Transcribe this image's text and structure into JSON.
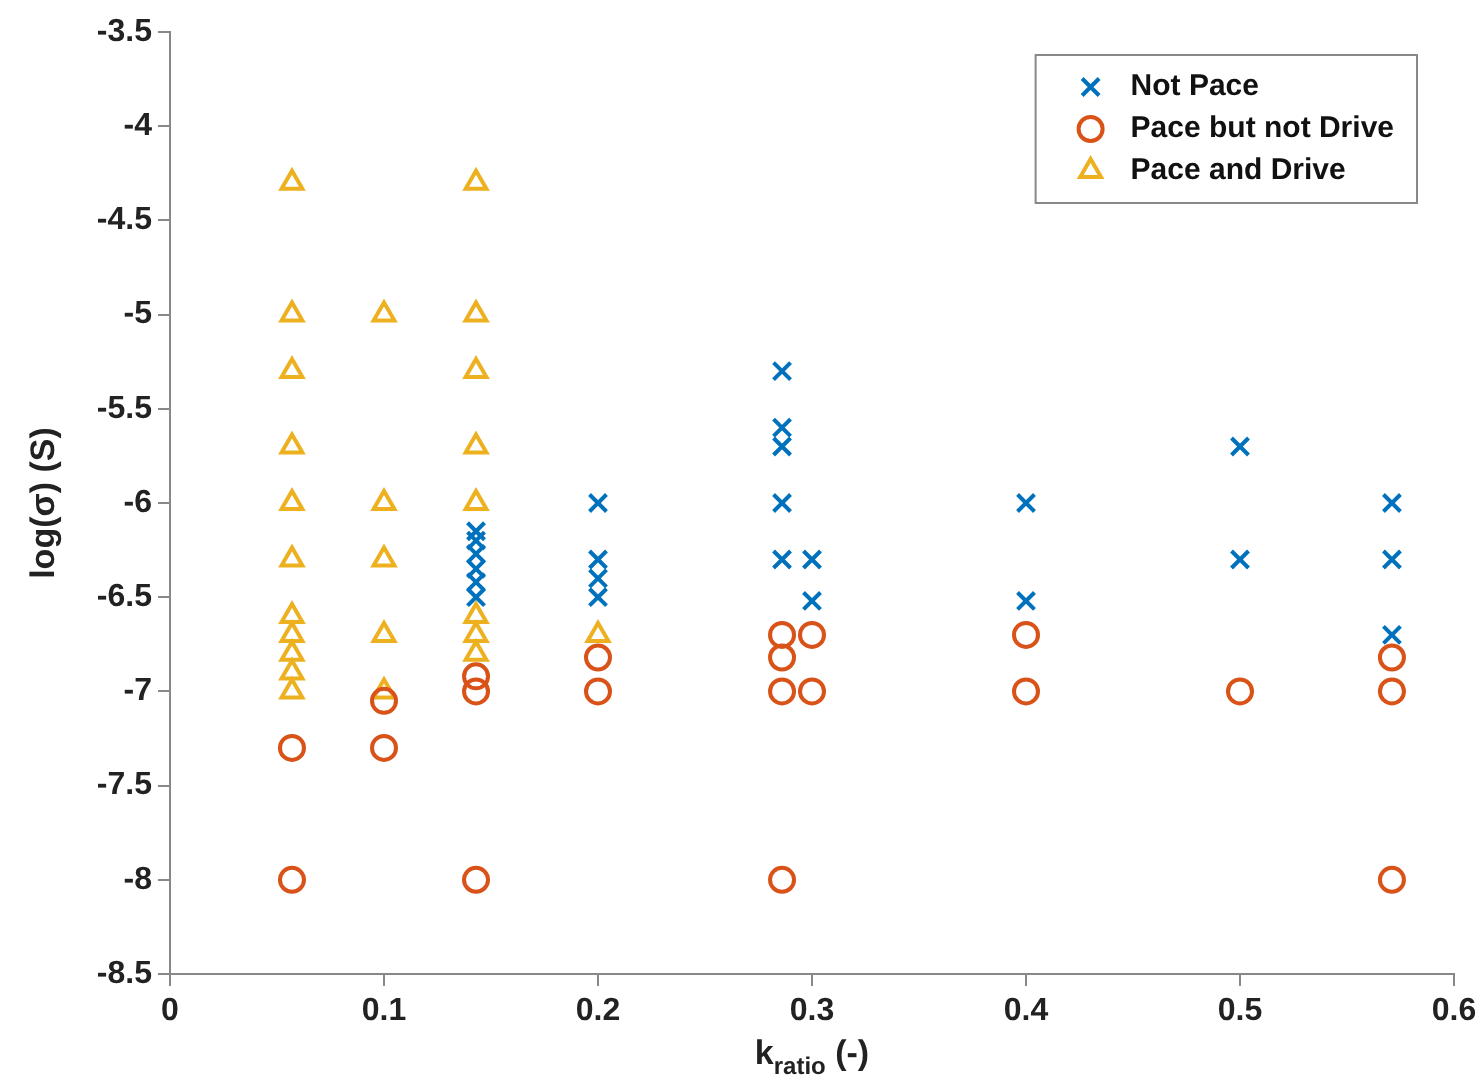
{
  "chart_data": {
    "type": "scatter",
    "xlabel": "k$_{ratio}$ (-)",
    "ylabel": "log(σ) (S)",
    "xlim": [
      0,
      0.6
    ],
    "xticks": [
      0,
      0.1,
      0.2,
      0.3,
      0.4,
      0.5,
      0.6
    ],
    "ylim": [
      -8.5,
      -3.5
    ],
    "yticks": [
      -8.5,
      -8,
      -7.5,
      -7,
      -6.5,
      -6,
      -5.5,
      -5,
      -4.5,
      -4,
      -3.5
    ],
    "grid": false,
    "legend": "top right",
    "series": [
      {
        "name": "Not Pace",
        "color": "#0072bd",
        "marker": "cross",
        "x": [
          0.143,
          0.143,
          0.143,
          0.143,
          0.143,
          0.143,
          0.2,
          0.2,
          0.2,
          0.2,
          0.286,
          0.286,
          0.286,
          0.286,
          0.286,
          0.3,
          0.3,
          0.4,
          0.4,
          0.5,
          0.5,
          0.571,
          0.571,
          0.571
        ],
        "values": [
          -6.15,
          -6.2,
          -6.27,
          -6.35,
          -6.42,
          -6.5,
          -6,
          -6.3,
          -6.4,
          -6.5,
          -5.3,
          -5.6,
          -5.7,
          -6,
          -6.3,
          -6.3,
          -6.52,
          -6,
          -6.52,
          -5.7,
          -6.3,
          -6,
          -6.3,
          -6.7
        ]
      },
      {
        "name": "Pace but not Drive",
        "color": "#d95319",
        "marker": "circle",
        "x": [
          0.057,
          0.057,
          0.1,
          0.1,
          0.143,
          0.143,
          0.143,
          0.2,
          0.2,
          0.286,
          0.286,
          0.286,
          0.286,
          0.3,
          0.3,
          0.4,
          0.4,
          0.5,
          0.571,
          0.571,
          0.571
        ],
        "values": [
          -7.3,
          -8,
          -7.05,
          -7.3,
          -6.92,
          -7,
          -8,
          -6.82,
          -7,
          -6.7,
          -6.82,
          -7,
          -8,
          -6.7,
          -7,
          -6.7,
          -7,
          -7,
          -6.82,
          -7,
          -8
        ]
      },
      {
        "name": "Pace and Drive",
        "color": "#edb120",
        "marker": "triangle",
        "x": [
          0.057,
          0.057,
          0.057,
          0.057,
          0.057,
          0.057,
          0.057,
          0.057,
          0.057,
          0.057,
          0.057,
          0.1,
          0.1,
          0.1,
          0.1,
          0.1,
          0.143,
          0.143,
          0.143,
          0.143,
          0.143,
          0.143,
          0.143,
          0.143,
          0.2
        ],
        "values": [
          -4.3,
          -5,
          -5.3,
          -5.7,
          -6,
          -6.3,
          -6.6,
          -6.7,
          -6.8,
          -6.9,
          -7,
          -5,
          -6,
          -6.3,
          -6.7,
          -7,
          -4.3,
          -5,
          -5.3,
          -5.7,
          -6,
          -6.6,
          -6.7,
          -6.8,
          -6.7
        ]
      }
    ]
  }
}
